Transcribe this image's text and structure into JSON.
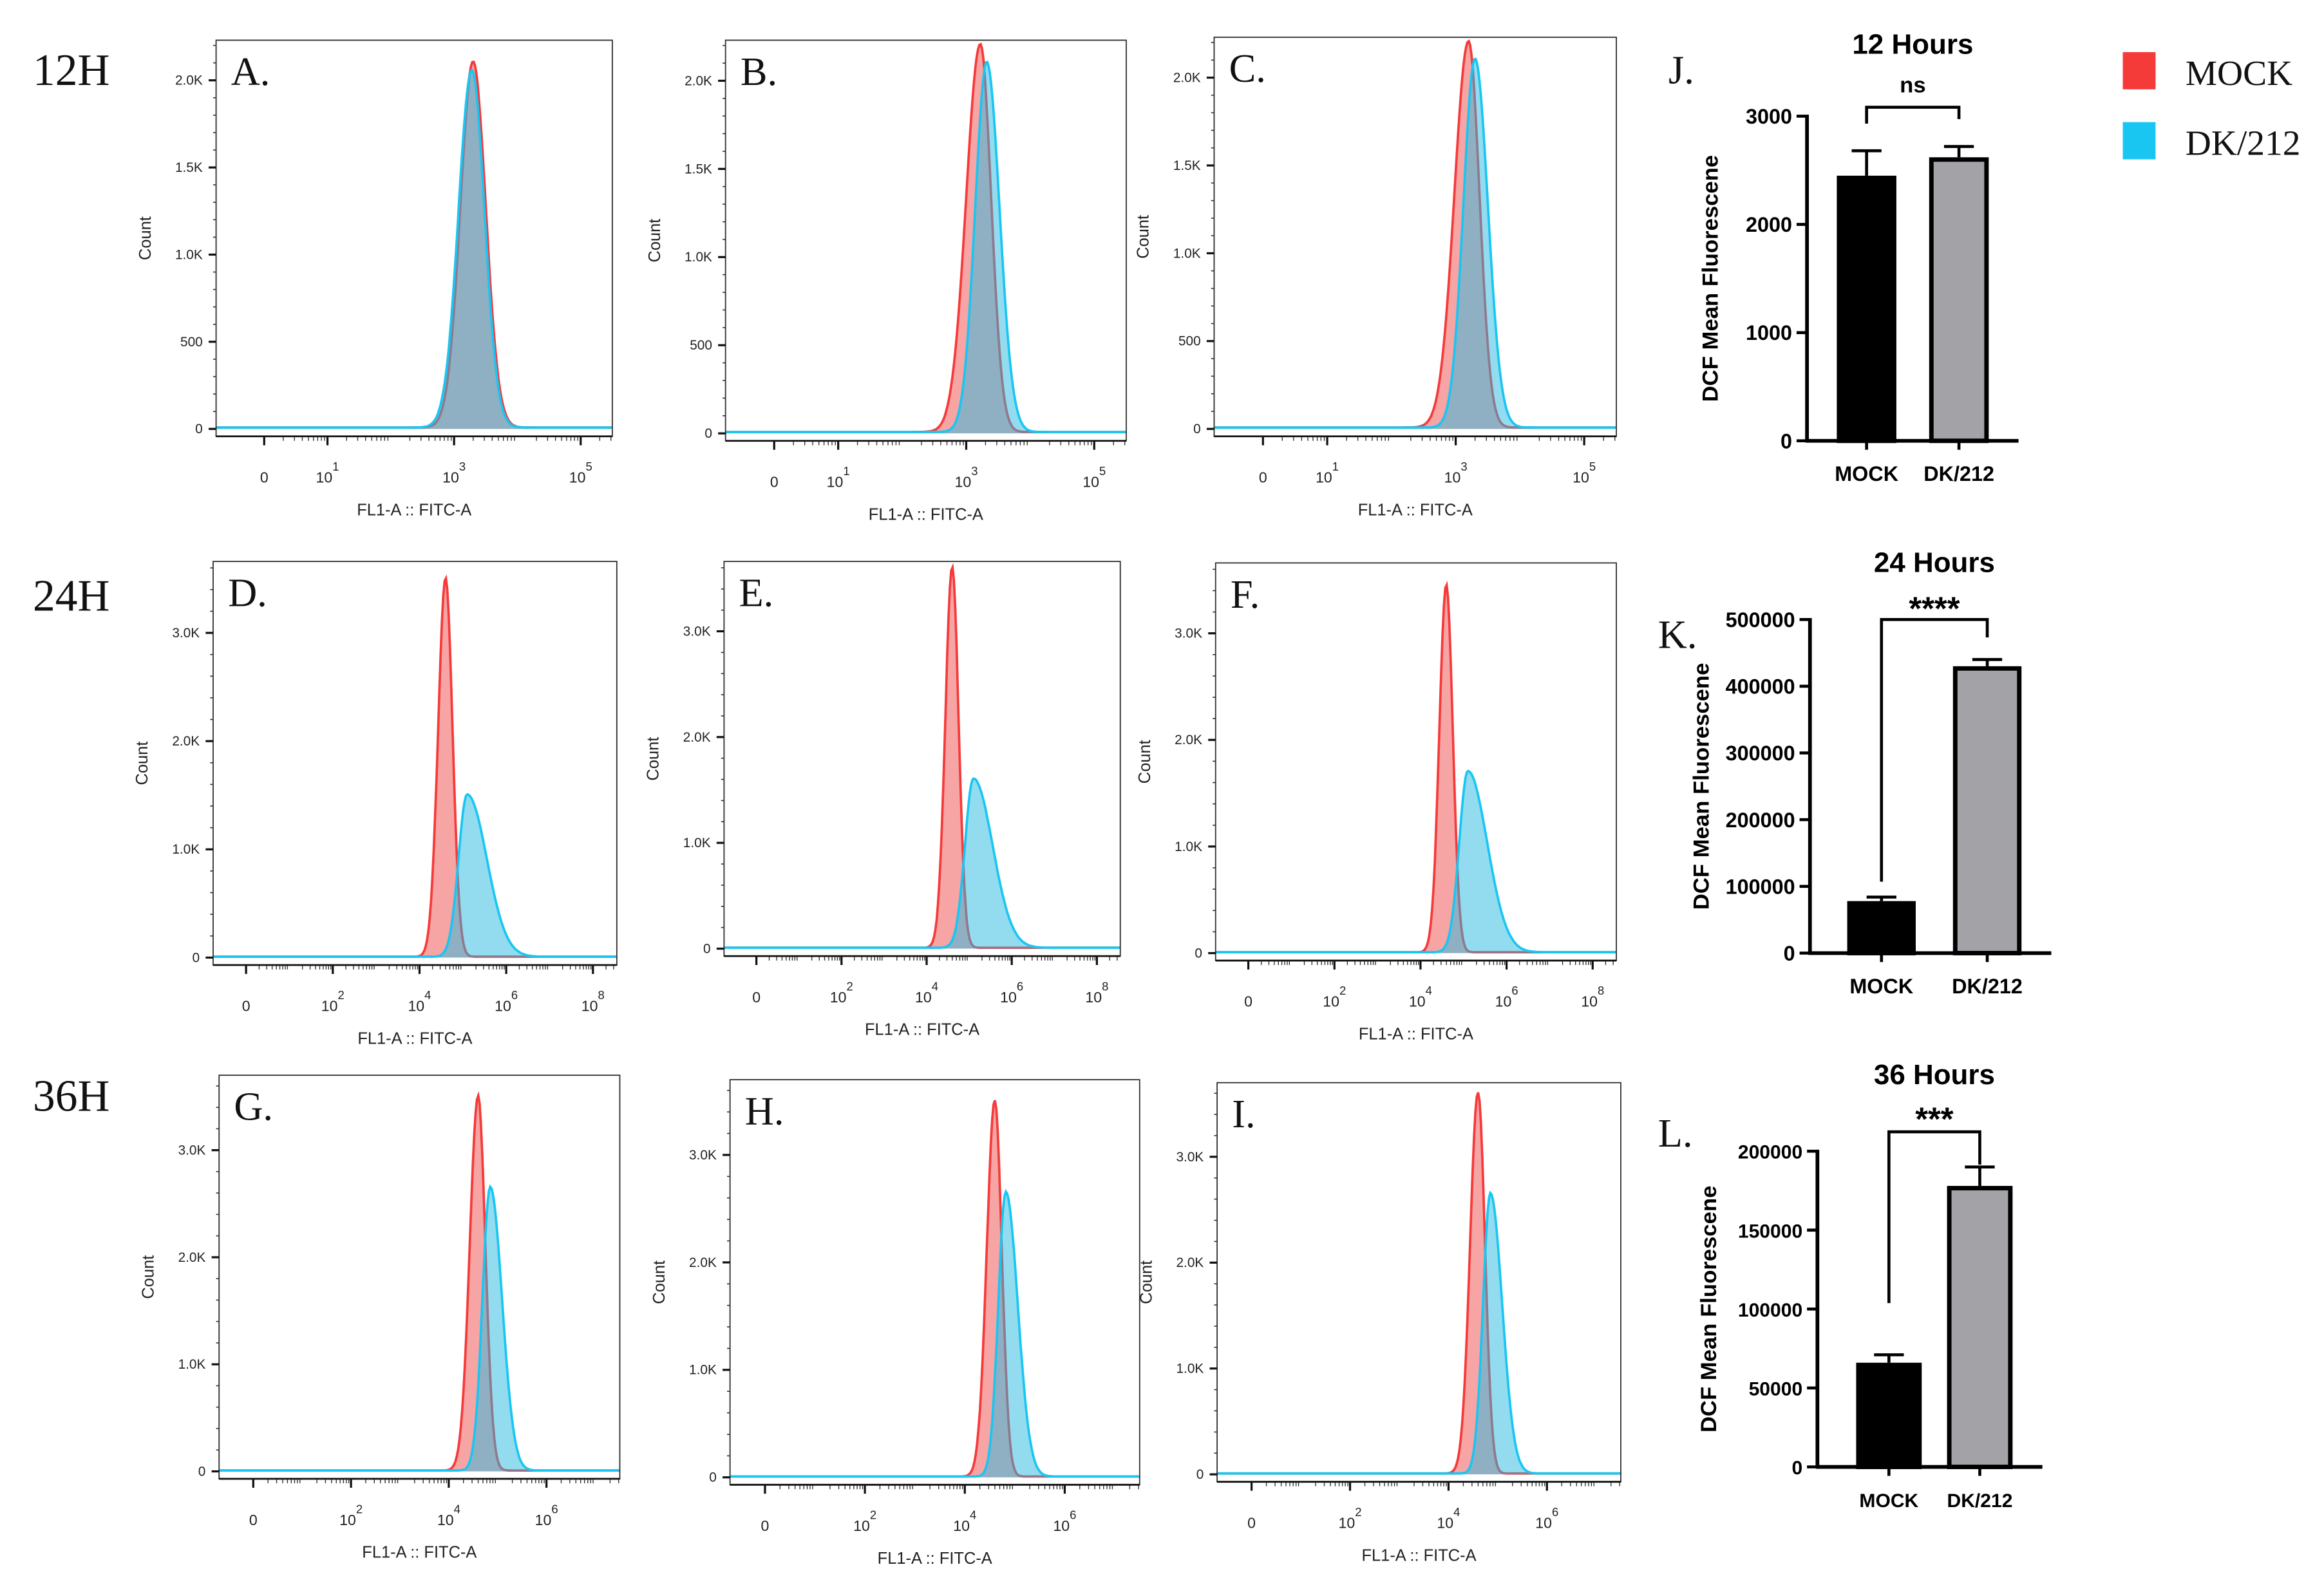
{
  "row_labels": [
    "12H",
    "24H",
    "36H"
  ],
  "legend": [
    {
      "label": "MOCK",
      "color": "#f53a3a"
    },
    {
      "label": "DK/212",
      "color": "#19c6f2"
    }
  ],
  "histogram_common": {
    "xlabel": "FL1-A :: FITC-A",
    "ylabel": "Count",
    "mock_color": "#f53a3a",
    "dk_color": "#19c6f2"
  },
  "chart_data": [
    {
      "type": "area",
      "panel": "A.",
      "row": 0,
      "xlim": [
        -0.76,
        5.5
      ],
      "ylim": [
        0,
        2230
      ],
      "xticks": [
        {
          "base": "0",
          "exp": "",
          "log": 0
        },
        {
          "base": "10",
          "exp": "1",
          "log": 1
        },
        {
          "base": "10",
          "exp": "3",
          "log": 3
        },
        {
          "base": "10",
          "exp": "5",
          "log": 5
        }
      ],
      "yticks": [
        {
          "label": "0",
          "v": 0
        },
        {
          "label": "500",
          "v": 500
        },
        {
          "label": "1.0K",
          "v": 1000
        },
        {
          "label": "1.5K",
          "v": 1500
        },
        {
          "label": "2.0K",
          "v": 2000
        }
      ],
      "series": [
        {
          "name": "MOCK",
          "peak_log": 3.3,
          "peak_count": 2100,
          "sd_left": 0.2,
          "sd_right": 0.2
        },
        {
          "name": "DK/212",
          "peak_log": 3.28,
          "peak_count": 2050,
          "sd_left": 0.21,
          "sd_right": 0.2
        }
      ]
    },
    {
      "type": "area",
      "panel": "B.",
      "row": 0,
      "xlim": [
        -0.76,
        5.5
      ],
      "ylim": [
        0,
        2230
      ],
      "xticks": [
        {
          "base": "0",
          "exp": "",
          "log": 0
        },
        {
          "base": "10",
          "exp": "1",
          "log": 1
        },
        {
          "base": "10",
          "exp": "3",
          "log": 3
        },
        {
          "base": "10",
          "exp": "5",
          "log": 5
        }
      ],
      "yticks": [
        {
          "label": "0",
          "v": 0
        },
        {
          "label": "500",
          "v": 500
        },
        {
          "label": "1.0K",
          "v": 1000
        },
        {
          "label": "1.5K",
          "v": 1500
        },
        {
          "label": "2.0K",
          "v": 2000
        }
      ],
      "series": [
        {
          "name": "MOCK",
          "peak_log": 3.22,
          "peak_count": 2200,
          "sd_left": 0.22,
          "sd_right": 0.17
        },
        {
          "name": "DK/212",
          "peak_log": 3.32,
          "peak_count": 2100,
          "sd_left": 0.18,
          "sd_right": 0.2
        }
      ]
    },
    {
      "type": "area",
      "panel": "C.",
      "row": 0,
      "xlim": [
        -0.76,
        5.5
      ],
      "ylim": [
        0,
        2230
      ],
      "xticks": [
        {
          "base": "0",
          "exp": "",
          "log": 0
        },
        {
          "base": "10",
          "exp": "1",
          "log": 1
        },
        {
          "base": "10",
          "exp": "3",
          "log": 3
        },
        {
          "base": "10",
          "exp": "5",
          "log": 5
        }
      ],
      "yticks": [
        {
          "label": "0",
          "v": 0
        },
        {
          "label": "500",
          "v": 500
        },
        {
          "label": "1.0K",
          "v": 1000
        },
        {
          "label": "1.5K",
          "v": 1500
        },
        {
          "label": "2.0K",
          "v": 2000
        }
      ],
      "series": [
        {
          "name": "MOCK",
          "peak_log": 3.2,
          "peak_count": 2200,
          "sd_left": 0.22,
          "sd_right": 0.17
        },
        {
          "name": "DK/212",
          "peak_log": 3.3,
          "peak_count": 2100,
          "sd_left": 0.18,
          "sd_right": 0.2
        }
      ]
    },
    {
      "type": "area",
      "panel": "D.",
      "row": 1,
      "xlim": [
        -0.76,
        8.55
      ],
      "ylim": [
        0,
        3660
      ],
      "xticks": [
        {
          "base": "0",
          "exp": "",
          "log": 0
        },
        {
          "base": "10",
          "exp": "2",
          "log": 2
        },
        {
          "base": "10",
          "exp": "4",
          "log": 4
        },
        {
          "base": "10",
          "exp": "6",
          "log": 6
        },
        {
          "base": "10",
          "exp": "8",
          "log": 8
        }
      ],
      "yticks": [
        {
          "label": "0",
          "v": 0
        },
        {
          "label": "1.0K",
          "v": 1000
        },
        {
          "label": "2.0K",
          "v": 2000
        },
        {
          "label": "3.0K",
          "v": 3000
        }
      ],
      "series": [
        {
          "name": "MOCK",
          "peak_log": 4.6,
          "peak_count": 3500,
          "sd_left": 0.17,
          "sd_right": 0.16
        },
        {
          "name": "DK/212",
          "peak_log": 5.1,
          "peak_count": 1500,
          "sd_left": 0.2,
          "sd_right": 0.45
        }
      ]
    },
    {
      "type": "area",
      "panel": "E.",
      "row": 1,
      "xlim": [
        -0.76,
        8.55
      ],
      "ylim": [
        0,
        3660
      ],
      "xticks": [
        {
          "base": "0",
          "exp": "",
          "log": 0
        },
        {
          "base": "10",
          "exp": "2",
          "log": 2
        },
        {
          "base": "10",
          "exp": "4",
          "log": 4
        },
        {
          "base": "10",
          "exp": "6",
          "log": 6
        },
        {
          "base": "10",
          "exp": "8",
          "log": 8
        }
      ],
      "yticks": [
        {
          "label": "0",
          "v": 0
        },
        {
          "label": "1.0K",
          "v": 1000
        },
        {
          "label": "2.0K",
          "v": 2000
        },
        {
          "label": "3.0K",
          "v": 3000
        }
      ],
      "series": [
        {
          "name": "MOCK",
          "peak_log": 4.6,
          "peak_count": 3600,
          "sd_left": 0.16,
          "sd_right": 0.15
        },
        {
          "name": "DK/212",
          "peak_log": 5.1,
          "peak_count": 1600,
          "sd_left": 0.2,
          "sd_right": 0.45
        }
      ]
    },
    {
      "type": "area",
      "panel": "F.",
      "row": 1,
      "xlim": [
        -0.76,
        8.55
      ],
      "ylim": [
        0,
        3660
      ],
      "xticks": [
        {
          "base": "0",
          "exp": "",
          "log": 0
        },
        {
          "base": "10",
          "exp": "2",
          "log": 2
        },
        {
          "base": "10",
          "exp": "4",
          "log": 4
        },
        {
          "base": "10",
          "exp": "6",
          "log": 6
        },
        {
          "base": "10",
          "exp": "8",
          "log": 8
        }
      ],
      "yticks": [
        {
          "label": "0",
          "v": 0
        },
        {
          "label": "1.0K",
          "v": 1000
        },
        {
          "label": "2.0K",
          "v": 2000
        },
        {
          "label": "3.0K",
          "v": 3000
        }
      ],
      "series": [
        {
          "name": "MOCK",
          "peak_log": 4.6,
          "peak_count": 3450,
          "sd_left": 0.16,
          "sd_right": 0.15
        },
        {
          "name": "DK/212",
          "peak_log": 5.1,
          "peak_count": 1700,
          "sd_left": 0.2,
          "sd_right": 0.45
        }
      ]
    },
    {
      "type": "area",
      "panel": "G.",
      "row": 2,
      "xlim": [
        -0.7,
        7.5
      ],
      "ylim": [
        0,
        3700
      ],
      "xticks": [
        {
          "base": "0",
          "exp": "",
          "log": 0
        },
        {
          "base": "10",
          "exp": "2",
          "log": 2
        },
        {
          "base": "10",
          "exp": "4",
          "log": 4
        },
        {
          "base": "10",
          "exp": "6",
          "log": 6
        }
      ],
      "yticks": [
        {
          "label": "0",
          "v": 0
        },
        {
          "label": "1.0K",
          "v": 1000
        },
        {
          "label": "2.0K",
          "v": 2000
        },
        {
          "label": "3.0K",
          "v": 3000
        }
      ],
      "series": [
        {
          "name": "MOCK",
          "peak_log": 4.6,
          "peak_count": 3500,
          "sd_left": 0.17,
          "sd_right": 0.15
        },
        {
          "name": "DK/212",
          "peak_log": 4.85,
          "peak_count": 2650,
          "sd_left": 0.16,
          "sd_right": 0.24
        }
      ]
    },
    {
      "type": "area",
      "panel": "H.",
      "row": 2,
      "xlim": [
        -0.7,
        7.5
      ],
      "ylim": [
        0,
        3700
      ],
      "xticks": [
        {
          "base": "0",
          "exp": "",
          "log": 0
        },
        {
          "base": "10",
          "exp": "2",
          "log": 2
        },
        {
          "base": "10",
          "exp": "4",
          "log": 4
        },
        {
          "base": "10",
          "exp": "6",
          "log": 6
        }
      ],
      "yticks": [
        {
          "label": "0",
          "v": 0
        },
        {
          "label": "1.0K",
          "v": 1000
        },
        {
          "label": "2.0K",
          "v": 2000
        },
        {
          "label": "3.0K",
          "v": 3000
        }
      ],
      "series": [
        {
          "name": "MOCK",
          "peak_log": 4.6,
          "peak_count": 3500,
          "sd_left": 0.16,
          "sd_right": 0.14
        },
        {
          "name": "DK/212",
          "peak_log": 4.82,
          "peak_count": 2650,
          "sd_left": 0.15,
          "sd_right": 0.24
        }
      ]
    },
    {
      "type": "area",
      "panel": "I.",
      "row": 2,
      "xlim": [
        -0.7,
        7.5
      ],
      "ylim": [
        0,
        3700
      ],
      "xticks": [
        {
          "base": "0",
          "exp": "",
          "log": 0
        },
        {
          "base": "10",
          "exp": "2",
          "log": 2
        },
        {
          "base": "10",
          "exp": "4",
          "log": 4
        },
        {
          "base": "10",
          "exp": "6",
          "log": 6
        }
      ],
      "yticks": [
        {
          "label": "0",
          "v": 0
        },
        {
          "label": "1.0K",
          "v": 1000
        },
        {
          "label": "2.0K",
          "v": 2000
        },
        {
          "label": "3.0K",
          "v": 3000
        }
      ],
      "series": [
        {
          "name": "MOCK",
          "peak_log": 4.6,
          "peak_count": 3600,
          "sd_left": 0.16,
          "sd_right": 0.14
        },
        {
          "name": "DK/212",
          "peak_log": 4.85,
          "peak_count": 2650,
          "sd_left": 0.15,
          "sd_right": 0.24
        }
      ]
    },
    {
      "type": "bar",
      "panel": "J.",
      "title": "12 Hours",
      "ylabel": "DCF Mean Fluorescene",
      "significance": "ns",
      "categories": [
        "MOCK",
        "DK/212"
      ],
      "values": [
        2450,
        2620
      ],
      "errors": [
        230,
        100
      ],
      "colors": [
        "#000000",
        "#a3a3a7"
      ],
      "ylim": [
        0,
        3000
      ],
      "yticks": [
        "0",
        "1000",
        "2000",
        "3000"
      ]
    },
    {
      "type": "bar",
      "panel": "K.",
      "title": "24 Hours",
      "ylabel": "DCF Mean Fluorescene",
      "significance": "****",
      "categories": [
        "MOCK",
        "DK/212"
      ],
      "values": [
        78000,
        430000
      ],
      "errors": [
        6000,
        10000
      ],
      "colors": [
        "#000000",
        "#a3a3a7"
      ],
      "ylim": [
        0,
        500000
      ],
      "yticks": [
        "0",
        "100000",
        "200000",
        "300000",
        "400000",
        "500000"
      ]
    },
    {
      "type": "bar",
      "panel": "L.",
      "title": "36 Hours",
      "ylabel": "DCF Mean Fluorescene",
      "significance": "***",
      "categories": [
        "MOCK",
        "DK/212"
      ],
      "values": [
        66000,
        178000
      ],
      "errors": [
        5000,
        12000
      ],
      "colors": [
        "#000000",
        "#a3a3a7"
      ],
      "ylim": [
        0,
        200000
      ],
      "yticks": [
        "0",
        "50000",
        "100000",
        "150000",
        "200000"
      ]
    }
  ]
}
